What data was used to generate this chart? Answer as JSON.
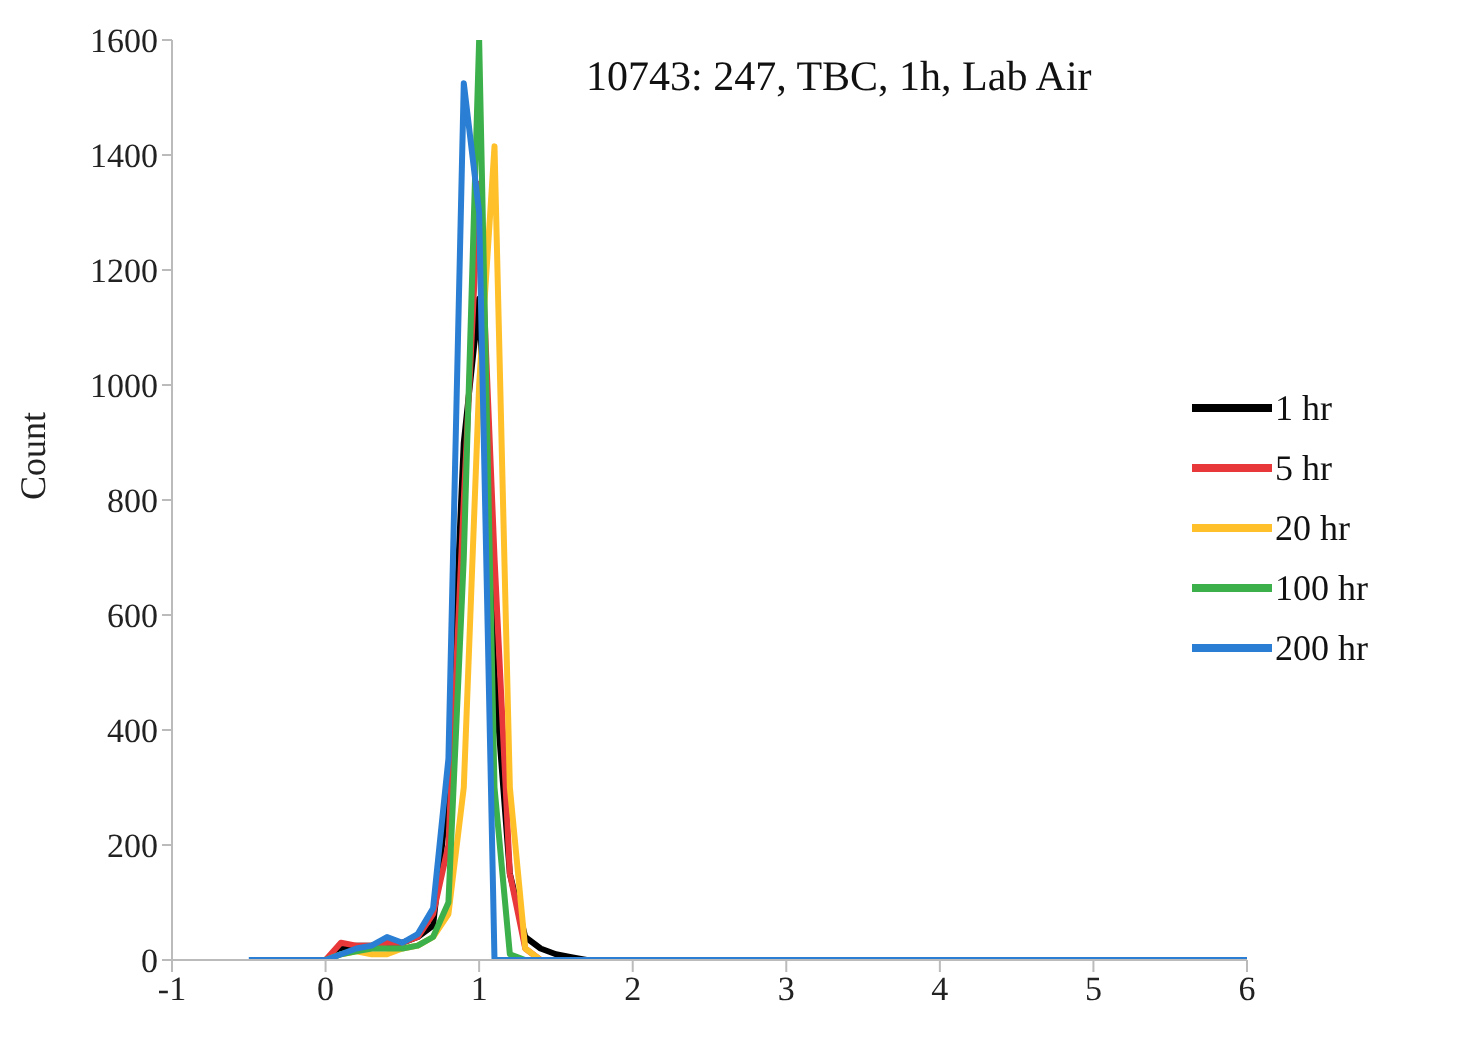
{
  "chart_data": {
    "type": "line",
    "title": "10743: 247, TBC, 1h, Lab Air",
    "ylabel": "Count",
    "xlim": [
      -1,
      6
    ],
    "xticks": [
      -1,
      0,
      1,
      2,
      3,
      4,
      5,
      6
    ],
    "ylim": [
      0,
      1600
    ],
    "yticks": [
      0,
      200,
      400,
      600,
      800,
      1000,
      1200,
      1400,
      1600
    ],
    "grid": false,
    "legend": "right",
    "marker": "none",
    "line_style": "solid",
    "series": [
      {
        "name": "1 hr",
        "color": "#000000",
        "x": [
          0,
          0.1,
          0.2,
          0.3,
          0.4,
          0.5,
          0.6,
          0.7,
          0.8,
          0.9,
          1.0,
          1.1,
          1.2,
          1.3,
          1.4,
          1.5,
          1.6,
          1.7
        ],
        "values": [
          0,
          20,
          25,
          25,
          30,
          30,
          40,
          60,
          300,
          900,
          1150,
          500,
          150,
          40,
          20,
          10,
          5,
          0
        ]
      },
      {
        "name": "5 hr",
        "color": "#e8383a",
        "x": [
          0,
          0.1,
          0.2,
          0.3,
          0.4,
          0.5,
          0.6,
          0.7,
          0.8,
          0.9,
          1.0,
          1.1,
          1.2,
          1.3,
          1.4
        ],
        "values": [
          0,
          30,
          25,
          25,
          30,
          30,
          40,
          80,
          200,
          800,
          1350,
          700,
          150,
          20,
          0
        ]
      },
      {
        "name": "20 hr",
        "color": "#ffc02a",
        "x": [
          0,
          0.1,
          0.2,
          0.3,
          0.4,
          0.5,
          0.6,
          0.7,
          0.8,
          0.9,
          1.0,
          1.1,
          1.2,
          1.3,
          1.4
        ],
        "values": [
          0,
          10,
          15,
          10,
          10,
          20,
          25,
          40,
          80,
          300,
          1000,
          1415,
          300,
          20,
          0
        ]
      },
      {
        "name": "100 hr",
        "color": "#3cb04a",
        "x": [
          0,
          0.1,
          0.2,
          0.3,
          0.4,
          0.5,
          0.6,
          0.7,
          0.8,
          0.9,
          1.0,
          1.1,
          1.2,
          1.3
        ],
        "values": [
          0,
          10,
          15,
          20,
          20,
          20,
          25,
          40,
          100,
          700,
          1600,
          300,
          10,
          0
        ]
      },
      {
        "name": "200 hr",
        "color": "#2a7fd4",
        "x": [
          -0.5,
          0,
          0.1,
          0.2,
          0.3,
          0.4,
          0.5,
          0.6,
          0.7,
          0.8,
          0.9,
          1.0,
          1.1,
          2,
          6
        ],
        "values": [
          0,
          0,
          10,
          20,
          25,
          40,
          30,
          45,
          90,
          350,
          1525,
          1300,
          0,
          0,
          0
        ]
      }
    ]
  }
}
